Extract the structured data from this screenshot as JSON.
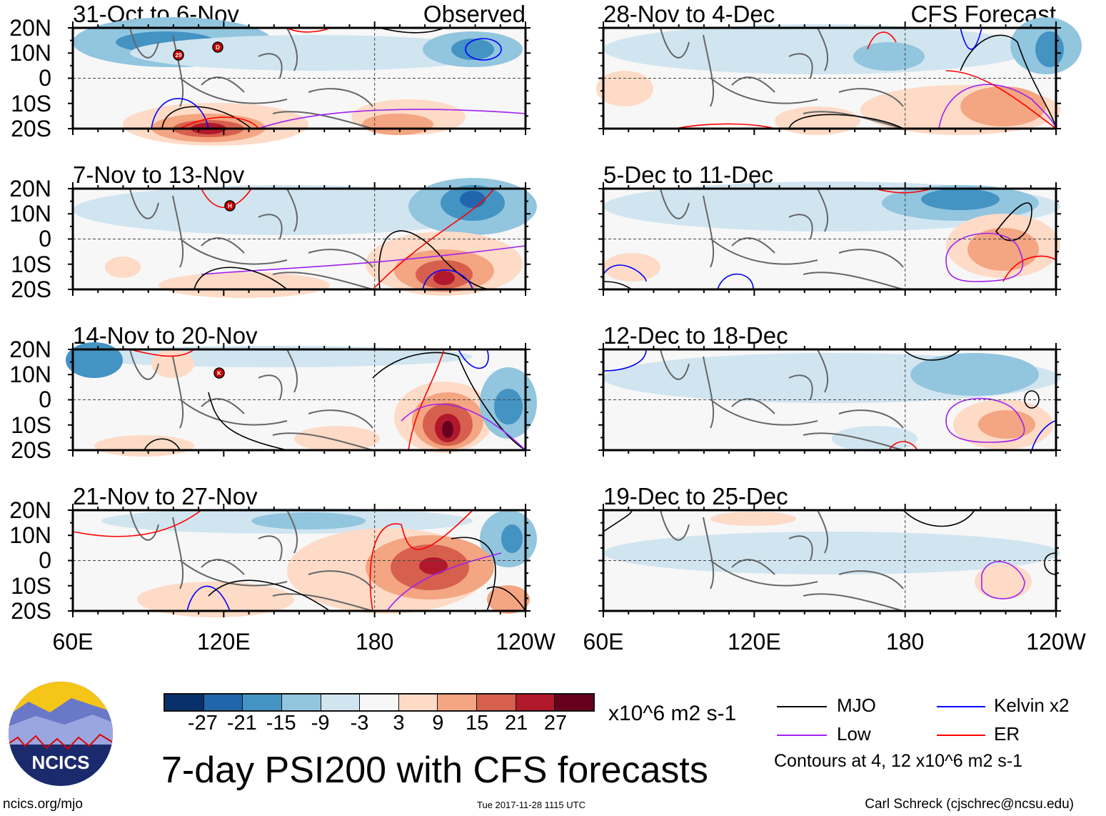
{
  "panels_left": [
    {
      "title": "31-Oct to 6-Nov",
      "tag": "Observed",
      "storms": [
        "29",
        "D"
      ]
    },
    {
      "title": "7-Nov to 13-Nov",
      "storms": [
        "H"
      ]
    },
    {
      "title": "14-Nov to 20-Nov",
      "storms": [
        "K"
      ]
    },
    {
      "title": "21-Nov to 27-Nov",
      "storms": []
    }
  ],
  "panels_right": [
    {
      "title": "28-Nov to 4-Dec",
      "tag": "CFS Forecast"
    },
    {
      "title": "5-Dec to 11-Dec"
    },
    {
      "title": "12-Dec to 18-Dec"
    },
    {
      "title": "19-Dec to 25-Dec"
    }
  ],
  "lat_labels": [
    "20N",
    "10N",
    "0",
    "10S",
    "20S"
  ],
  "lon_labels": [
    "60E",
    "120E",
    "180",
    "120W"
  ],
  "colorbar": {
    "colors": [
      "#08306b",
      "#2166ac",
      "#4393c3",
      "#92c5de",
      "#d1e5f0",
      "#f7f7f7",
      "#fddbc7",
      "#f4a582",
      "#d6604d",
      "#b2182b",
      "#67001f"
    ],
    "ticks": [
      "-27",
      "-21",
      "-15",
      "-9",
      "-3",
      "3",
      "9",
      "15",
      "21",
      "27"
    ],
    "units": "x10^6 m2 s-1"
  },
  "title": "7-day PSI200 with CFS forecasts",
  "timestamp": "Tue 2017-11-28 1115 UTC",
  "legend": {
    "items": [
      {
        "label": "MJO",
        "color": "#000000"
      },
      {
        "label": "Kelvin x2",
        "color": "#0000ff"
      },
      {
        "label": "Low",
        "color": "#a020f0"
      },
      {
        "label": "ER",
        "color": "#ff0000"
      }
    ],
    "contours": "Contours at 4, 12 x10^6 m2 s-1"
  },
  "logo": {
    "text": "NCICS"
  },
  "footer": {
    "url": "ncics.org/mjo",
    "author": "Carl Schreck (cjschrec@ncsu.edu)"
  }
}
